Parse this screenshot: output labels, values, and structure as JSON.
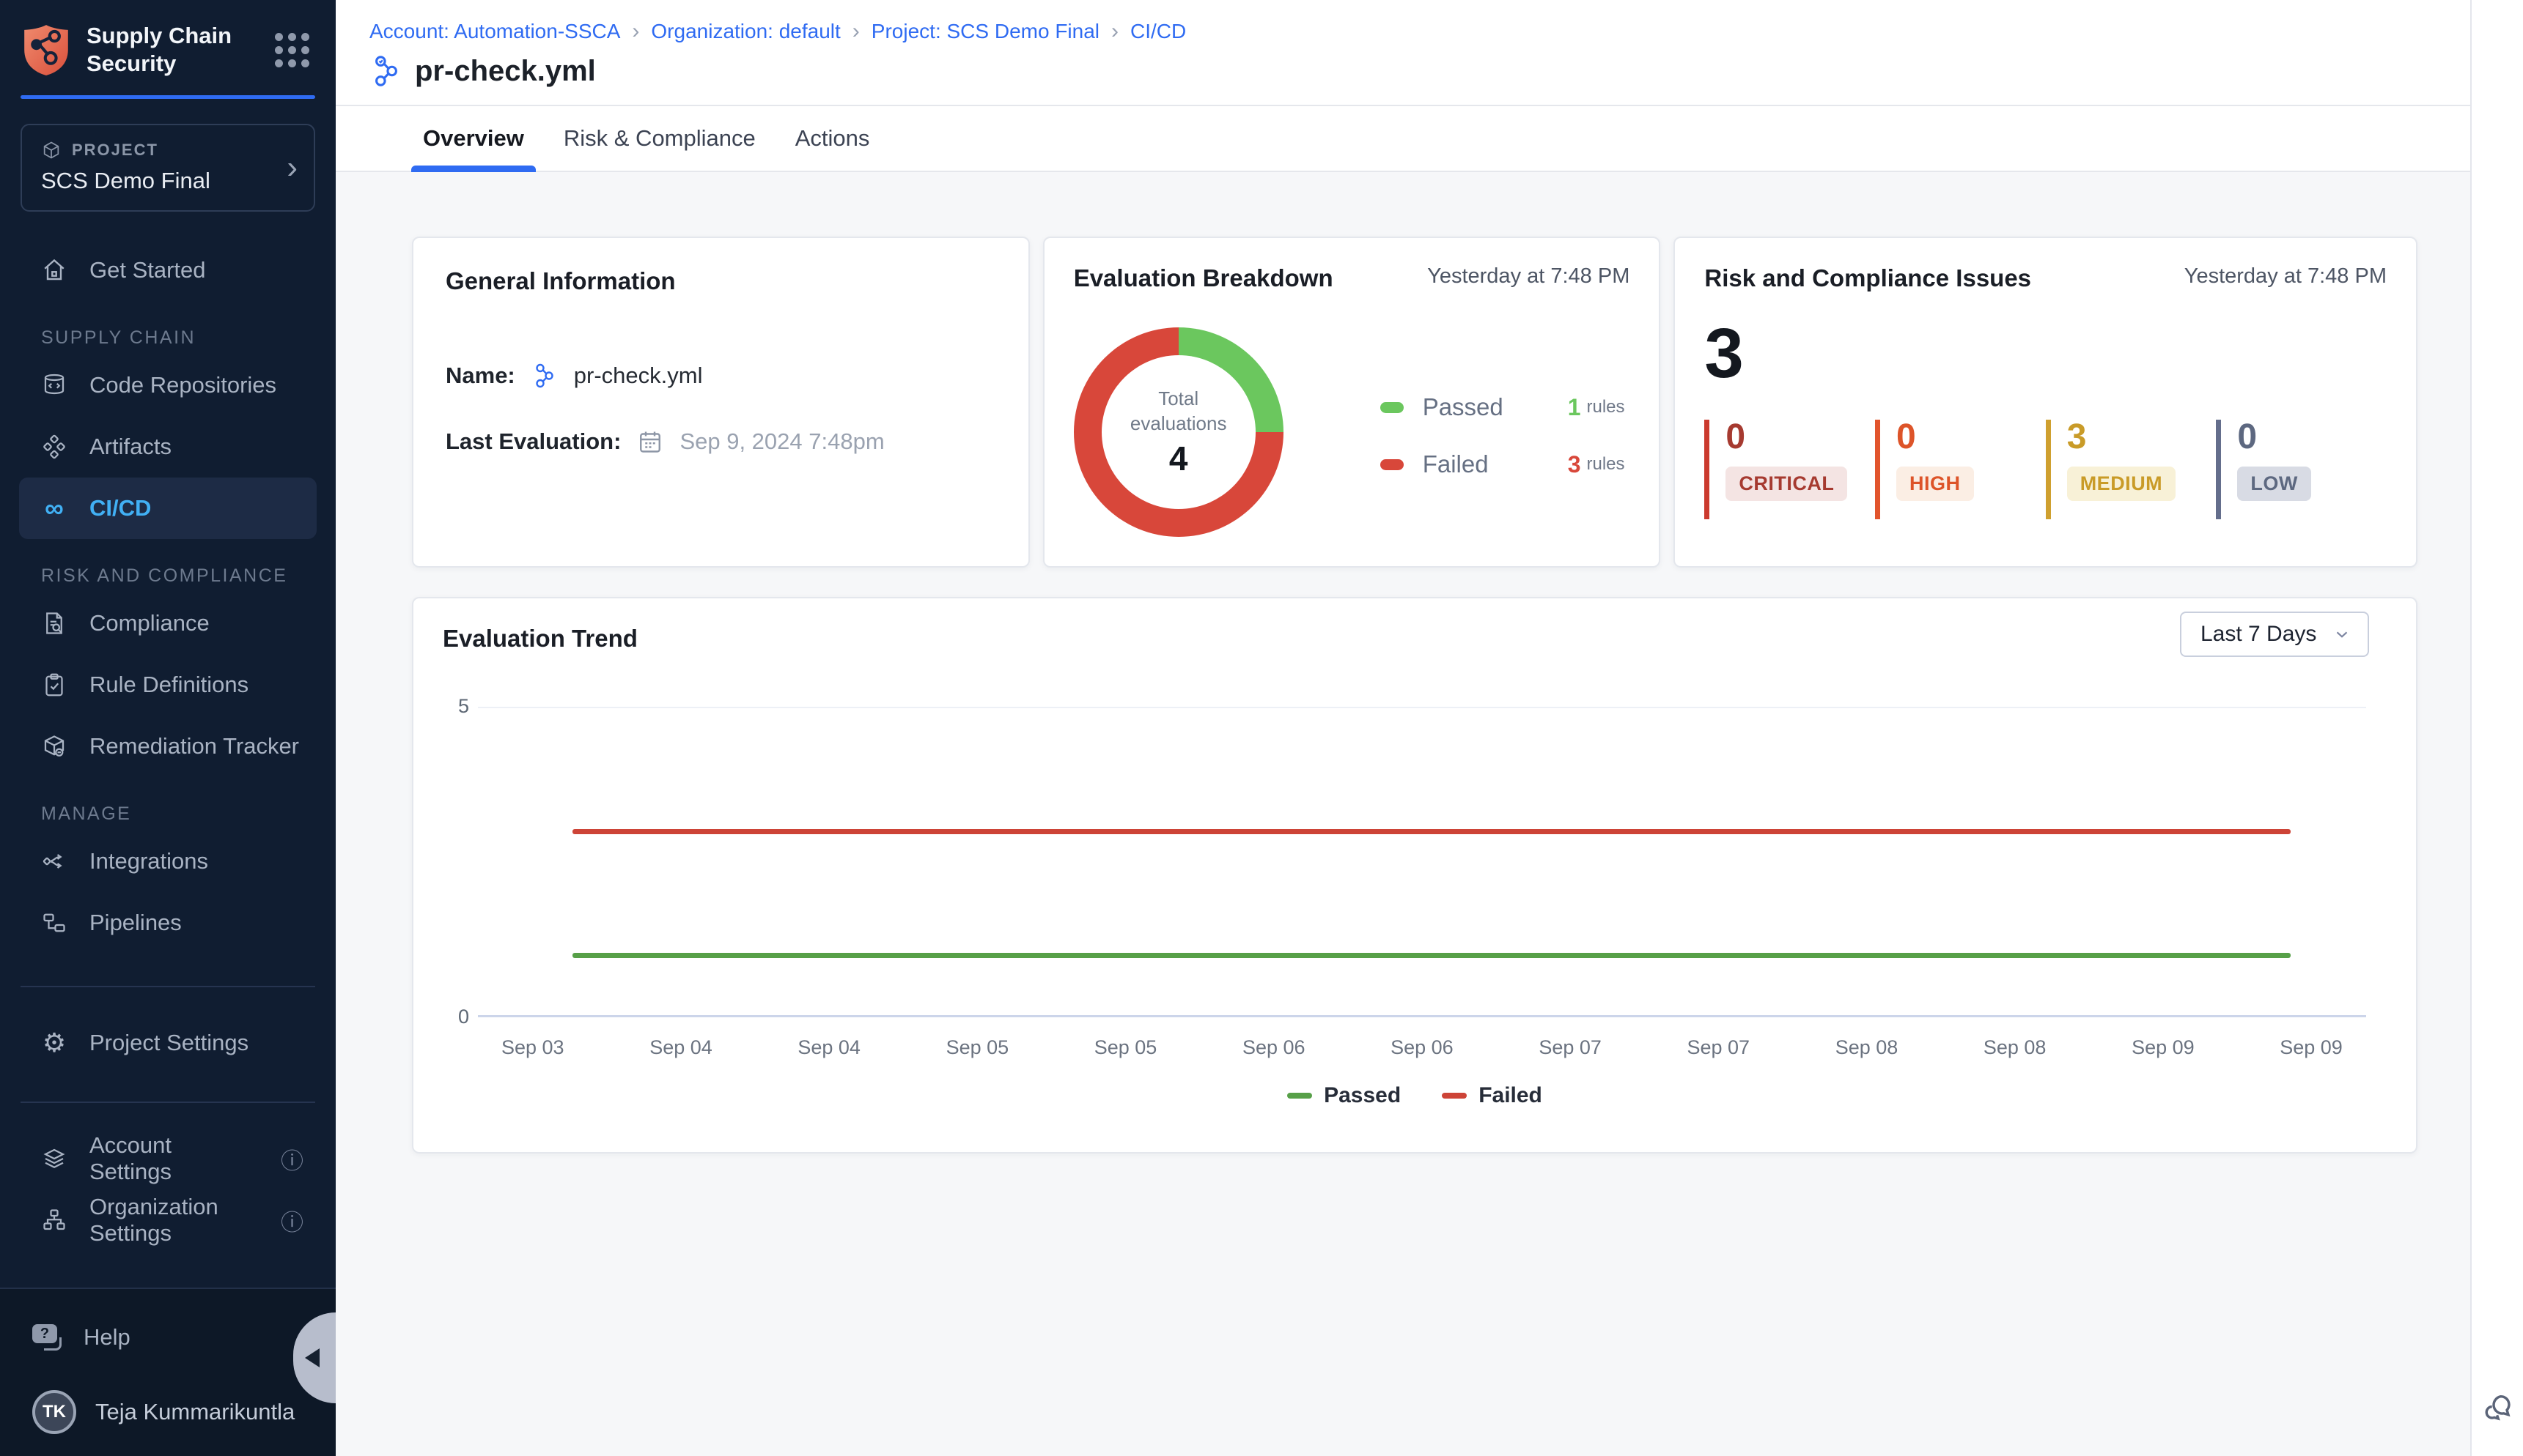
{
  "theme": {
    "accent_blue": "#2f6bf2",
    "active_nav_blue": "#41b0f4",
    "sidebar_bg": "#101d31",
    "content_bg": "#f6f7f9"
  },
  "sidebar": {
    "logo_title": "Supply Chain Security",
    "project_label": "PROJECT",
    "project_name": "SCS Demo Final",
    "sections": [
      {
        "items": [
          {
            "label": "Get Started"
          }
        ]
      },
      {
        "heading": "SUPPLY CHAIN",
        "items": [
          {
            "label": "Code Repositories"
          },
          {
            "label": "Artifacts"
          },
          {
            "label": "CI/CD",
            "active": true
          }
        ]
      },
      {
        "heading": "RISK AND COMPLIANCE",
        "items": [
          {
            "label": "Compliance"
          },
          {
            "label": "Rule Definitions"
          },
          {
            "label": "Remediation Tracker"
          }
        ]
      },
      {
        "heading": "MANAGE",
        "items": [
          {
            "label": "Integrations"
          },
          {
            "label": "Pipelines"
          }
        ]
      }
    ],
    "footer_items": [
      {
        "label": "Project Settings"
      },
      {
        "label": "Account Settings",
        "info": true
      },
      {
        "label": "Organization Settings",
        "info": true
      }
    ],
    "help_label": "Help",
    "user": {
      "initials": "TK",
      "name": "Teja Kummarikuntla"
    }
  },
  "header": {
    "breadcrumb": [
      {
        "label": "Account: Automation-SSCA"
      },
      {
        "label": "Organization: default"
      },
      {
        "label": "Project: SCS Demo Final"
      },
      {
        "label": "CI/CD"
      }
    ],
    "title": "pr-check.yml",
    "tabs": [
      {
        "label": "Overview",
        "active": true
      },
      {
        "label": "Risk & Compliance"
      },
      {
        "label": "Actions"
      }
    ]
  },
  "cards": {
    "general": {
      "title": "General Information",
      "name_label": "Name:",
      "name_value": "pr-check.yml",
      "last_eval_label": "Last Evaluation:",
      "last_eval_value": "Sep 9, 2024 7:48pm"
    },
    "breakdown": {
      "title": "Evaluation Breakdown",
      "timestamp": "Yesterday at 7:48 PM"
    },
    "risk": {
      "title": "Risk and Compliance Issues",
      "timestamp": "Yesterday at 7:48 PM",
      "total": "3",
      "severities": [
        {
          "label": "CRITICAL",
          "count": "0",
          "bar": "#cb3a2e",
          "text": "#a63a30",
          "badge_bg": "#f4e4e3"
        },
        {
          "label": "HIGH",
          "count": "0",
          "bar": "#e2552d",
          "text": "#dd5429",
          "badge_bg": "#fbeee4"
        },
        {
          "label": "MEDIUM",
          "count": "3",
          "bar": "#cfa02f",
          "text": "#c99b28",
          "badge_bg": "#f8f1d7"
        },
        {
          "label": "LOW",
          "count": "0",
          "bar": "#646e8c",
          "text": "#5d6880",
          "badge_bg": "#d8dbe4"
        }
      ]
    },
    "trend": {
      "title": "Evaluation Trend",
      "range_selector": "Last 7 Days"
    }
  },
  "chart_data": [
    {
      "type": "pie",
      "title": "Evaluation Breakdown",
      "labels": [
        "Passed",
        "Failed"
      ],
      "values": [
        1,
        3
      ],
      "colors": [
        "#6bc75e",
        "#d8473a"
      ],
      "center_label": "Total evaluations",
      "center_value": "4",
      "legend": [
        {
          "label": "Passed",
          "count": "1",
          "unit": "rules"
        },
        {
          "label": "Failed",
          "count": "3",
          "unit": "rules"
        }
      ]
    },
    {
      "type": "line",
      "title": "Evaluation Trend",
      "x": [
        "Sep 03",
        "Sep 04",
        "Sep 04",
        "Sep 05",
        "Sep 05",
        "Sep 06",
        "Sep 06",
        "Sep 07",
        "Sep 07",
        "Sep 08",
        "Sep 08",
        "Sep 09",
        "Sep 09"
      ],
      "series": [
        {
          "name": "Passed",
          "values": [
            1,
            1,
            1,
            1,
            1,
            1,
            1,
            1,
            1,
            1,
            1,
            1,
            1
          ],
          "color": "#57a048"
        },
        {
          "name": "Failed",
          "values": [
            3,
            3,
            3,
            3,
            3,
            3,
            3,
            3,
            3,
            3,
            3,
            3,
            3
          ],
          "color": "#cd4437"
        }
      ],
      "ylim": [
        0,
        5
      ],
      "yticks": [
        0,
        5
      ],
      "grid": true,
      "legend_position": "bottom"
    }
  ]
}
